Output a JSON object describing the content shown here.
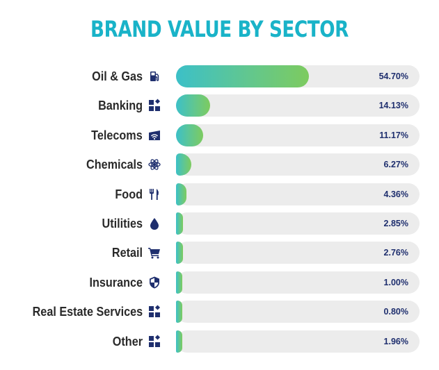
{
  "colors": {
    "title": "#19b3c8",
    "label": "#2a2a2a",
    "icon": "#1f2f6e",
    "value": "#1f2f6e",
    "track": "#ececec",
    "fill_start": "#3cc0c8",
    "fill_end": "#7dcb5f"
  },
  "chart_data": {
    "type": "bar",
    "orientation": "horizontal",
    "title": "BRAND VALUE BY SECTOR",
    "xlabel": "",
    "ylabel": "",
    "xlim": [
      0,
      100
    ],
    "grid": false,
    "categories": [
      "Oil & Gas",
      "Banking",
      "Telecoms",
      "Chemicals",
      "Food",
      "Utilities",
      "Retail",
      "Insurance",
      "Real Estate Services",
      "Other"
    ],
    "values": [
      54.7,
      14.13,
      11.17,
      6.27,
      4.36,
      2.85,
      2.76,
      1.0,
      0.8,
      1.96
    ],
    "value_labels": [
      "54.70%",
      "14.13%",
      "11.17%",
      "6.27%",
      "4.36%",
      "2.85%",
      "2.76%",
      "1.00%",
      "0.80%",
      "1.96%"
    ],
    "icons": [
      "fuel-pump-icon",
      "grid-blocks-icon",
      "wifi-router-icon",
      "atom-icon",
      "fork-knife-icon",
      "water-drop-icon",
      "shopping-cart-icon",
      "shield-icon",
      "grid-blocks-icon",
      "grid-blocks-icon"
    ]
  }
}
